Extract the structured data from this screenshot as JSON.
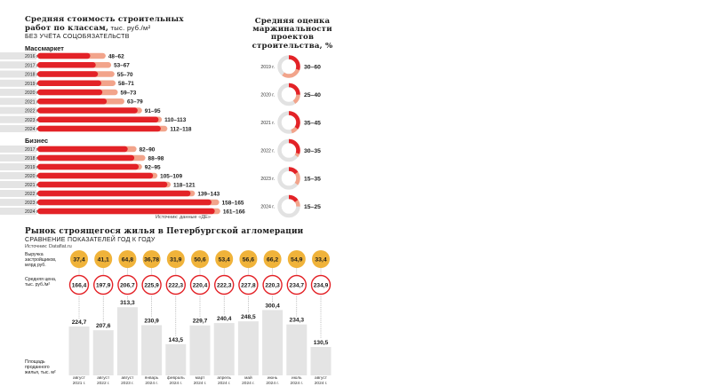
{
  "colors": {
    "red": "#e32227",
    "pink": "#f2a48b",
    "gold": "#f0b33a",
    "gray": "#e4e4e4",
    "ring_gray": "#e2e2e2"
  },
  "left_panel": {
    "title_line1": "Средняя стоимость строительных",
    "title_line2_bold": "работ по классам,",
    "title_line2_unit": " тыс. руб./м²",
    "subtitle": "БЕЗ УЧЁТА СОЦОБЯЗАТЕЛЬСТВ",
    "source": "Источник: данные «ДЕ»"
  },
  "right_panel": {
    "title_lines": [
      "Средняя оценка",
      "маржинальности",
      "проектов",
      "строительства, %"
    ]
  },
  "bottom_panel": {
    "title": "Рынок строящегося жилья в Петербургской агломерации",
    "subtitle": "СРАВНЕНИЕ ПОКАЗАТЕЛЕЙ ГОД К ГОДУ",
    "source": "Источник: Dataflat.ru",
    "row_label_revenue": [
      "Выручка",
      "застройщиков,",
      "млрд руб."
    ],
    "row_label_price": [
      "Средняя цена,",
      "тыс. руб./м²"
    ],
    "row_label_area": [
      "Площадь",
      "проданного",
      "жилья, тыс. м²"
    ]
  },
  "chart_data": [
    {
      "type": "bar",
      "name": "Массмаркет",
      "categories": [
        "2016 г.",
        "2017 г.",
        "2018 г.",
        "2019 г.",
        "2020 г.",
        "2021 г.",
        "2022 г.",
        "2023 г.",
        "2024 г."
      ],
      "ranges": [
        [
          48,
          62
        ],
        [
          53,
          67
        ],
        [
          55,
          70
        ],
        [
          58,
          71
        ],
        [
          59,
          73
        ],
        [
          63,
          79
        ],
        [
          91,
          95
        ],
        [
          110,
          113
        ],
        [
          112,
          118
        ]
      ],
      "labels": [
        "48–62",
        "53–67",
        "55–70",
        "58–71",
        "59–73",
        "63–79",
        "91–95",
        "110–113",
        "112–118"
      ]
    },
    {
      "type": "bar",
      "name": "Бизнес",
      "categories": [
        "2017 г.",
        "2018 г.",
        "2019 г.",
        "2020 г.",
        "2021 г.",
        "2022 г.",
        "2023 г.",
        "2024 г."
      ],
      "ranges": [
        [
          82,
          90
        ],
        [
          88,
          98
        ],
        [
          92,
          95
        ],
        [
          105,
          109
        ],
        [
          118,
          121
        ],
        [
          139,
          143
        ],
        [
          158,
          165
        ],
        [
          161,
          166
        ]
      ],
      "labels": [
        "82–90",
        "88–98",
        "92–95",
        "105–109",
        "118–121",
        "139–143",
        "158–165",
        "161–166"
      ]
    },
    {
      "type": "pie",
      "name": "margin",
      "categories": [
        "2019 г.",
        "2020 г.",
        "2021 г.",
        "2022 г.",
        "2023 г.",
        "2024 г."
      ],
      "ranges": [
        [
          30,
          60
        ],
        [
          25,
          40
        ],
        [
          35,
          45
        ],
        [
          30,
          35
        ],
        [
          15,
          35
        ],
        [
          15,
          25
        ]
      ],
      "labels": [
        "30–60",
        "25–40",
        "35–45",
        "30–35",
        "15–35",
        "15–25"
      ]
    },
    {
      "type": "bar",
      "name": "market",
      "categories": [
        [
          "август",
          "2021 г."
        ],
        [
          "август",
          "2022 г."
        ],
        [
          "август",
          "2023 г."
        ],
        [
          "январь",
          "2024 г."
        ],
        [
          "февраль",
          "2024 г."
        ],
        [
          "март",
          "2024 г."
        ],
        [
          "апрель",
          "2024 г."
        ],
        [
          "май",
          "2024 г."
        ],
        [
          "июнь",
          "2024 г."
        ],
        [
          "июль",
          "2024 г."
        ],
        [
          "август",
          "2024 г."
        ]
      ],
      "revenue": [
        "37,4",
        "41,1",
        "64,8",
        "36,78",
        "31,9",
        "50,6",
        "53,4",
        "56,6",
        "66,2",
        "54,9",
        "33,4"
      ],
      "price": [
        "166,4",
        "197,9",
        "206,7",
        "225,9",
        "222,3",
        "220,4",
        "222,3",
        "227,8",
        "220,3",
        "234,7",
        "234,9"
      ],
      "area_values": [
        224.7,
        207.6,
        313.3,
        230.9,
        143.5,
        229.7,
        240.4,
        248.5,
        300.4,
        234.3,
        130.5
      ],
      "area_labels": [
        "224,7",
        "207,6",
        "313,3",
        "230,9",
        "143,5",
        "229,7",
        "240,4",
        "248,5",
        "300,4",
        "234,3",
        "130,5"
      ]
    }
  ]
}
